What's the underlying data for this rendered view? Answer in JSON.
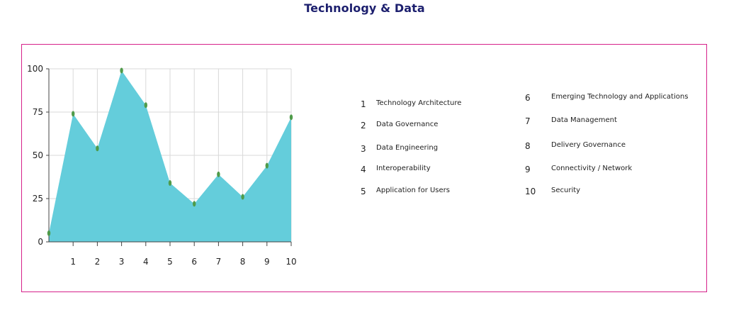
{
  "title": "Technology & Data",
  "colors": {
    "title": "#1c1f6e",
    "panel_border": "#d6218a",
    "area_fill": "#64cddb",
    "marker": "#4f9b4a",
    "grid": "#d9d9d9",
    "axis": "#444444"
  },
  "legend": {
    "items": [
      {
        "num": "1",
        "label": "Technology Architecture"
      },
      {
        "num": "2",
        "label": "Data Governance"
      },
      {
        "num": "3",
        "label": "Data Engineering"
      },
      {
        "num": "4",
        "label": "Interoperability"
      },
      {
        "num": "5",
        "label": "Application for Users"
      },
      {
        "num": "6",
        "label": "Emerging Technology and Applications"
      },
      {
        "num": "7",
        "label": "Data Management"
      },
      {
        "num": "8",
        "label": "Delivery Governance"
      },
      {
        "num": "9",
        "label": "Connectivity / Network"
      },
      {
        "num": "10",
        "label": "Security"
      }
    ]
  },
  "chart_data": {
    "type": "area",
    "title": "",
    "xlabel": "",
    "ylabel": "",
    "x": [
      0,
      1,
      2,
      3,
      4,
      5,
      6,
      7,
      8,
      9,
      10
    ],
    "values": [
      5,
      74,
      54,
      99,
      79,
      34,
      22,
      39,
      26,
      44,
      72
    ],
    "xlim": [
      0,
      10
    ],
    "ylim": [
      0,
      100
    ],
    "x_ticks": [
      "1",
      "2",
      "3",
      "4",
      "5",
      "6",
      "7",
      "8",
      "9",
      "10"
    ],
    "y_ticks": [
      "0",
      "25",
      "50",
      "75",
      "100"
    ],
    "grid": "on",
    "legend": "right"
  }
}
